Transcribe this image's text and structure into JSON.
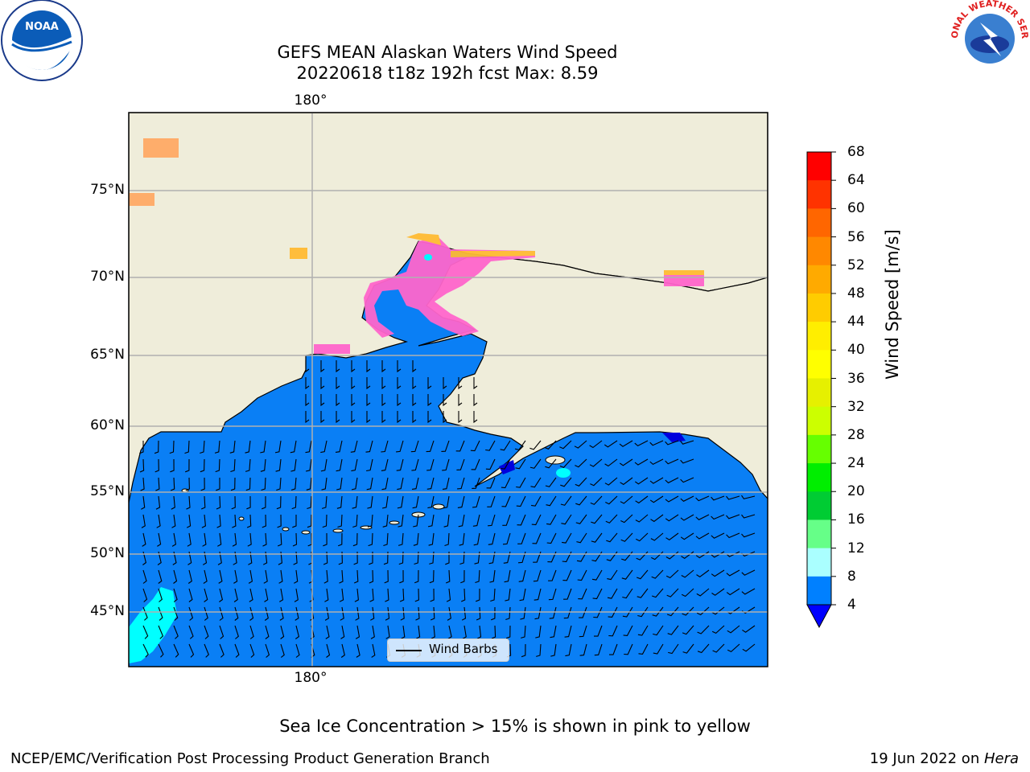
{
  "title": {
    "line1": "GEFS MEAN Alaskan Waters Wind Speed",
    "line2": "20220618 t18z 192h fcst   Max: 8.59"
  },
  "map": {
    "lon_labels": [
      "180°",
      "180°"
    ],
    "lat_labels": [
      "75°N",
      "70°N",
      "65°N",
      "60°N",
      "55°N",
      "50°N",
      "45°N"
    ],
    "legend": "Wind Barbs",
    "colors": {
      "ocean": "#0a7ff5",
      "land": "#efedda",
      "ice": "#ff66cc",
      "ice_edge": "#ffbb33",
      "low": "#00ffff"
    }
  },
  "colorbar": {
    "label": "Wind Speed [m/s]",
    "ticks": [
      "68",
      "64",
      "60",
      "56",
      "52",
      "48",
      "44",
      "40",
      "36",
      "32",
      "28",
      "24",
      "20",
      "16",
      "12",
      "8",
      "4"
    ],
    "colors": [
      "#ff0000",
      "#ff3300",
      "#ff6600",
      "#ff8800",
      "#ffaa00",
      "#ffcc00",
      "#ffee00",
      "#ffff00",
      "#e6f000",
      "#ccff00",
      "#66ff00",
      "#00ee00",
      "#00cc33",
      "#66ff88",
      "#aaffff",
      "#55ffff",
      "#00ffff",
      "#0080ff"
    ],
    "under_color": "#0000ff"
  },
  "note": "Sea Ice Concentration > 15% is shown in pink to yellow",
  "footer": {
    "left": "NCEP/EMC/Verification Post Processing Product Generation Branch",
    "right_date": "19 Jun 2022 on ",
    "right_host": "Hera"
  },
  "logos": {
    "noaa": "NOAA",
    "nws": "NATIONAL WEATHER SERVICE"
  }
}
